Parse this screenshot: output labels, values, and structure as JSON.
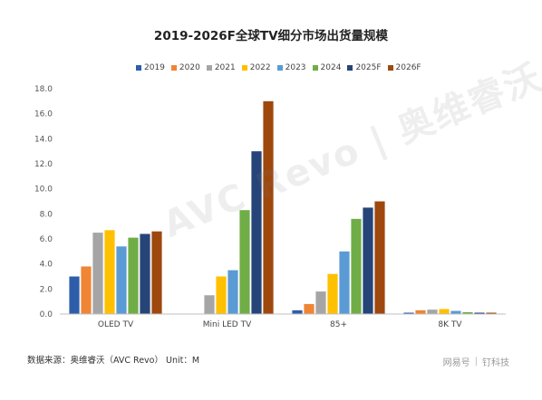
{
  "chart_data": {
    "type": "bar",
    "title": "2019-2026F全球TV细分市场出货量规模",
    "categories": [
      "OLED TV",
      "Mini LED TV",
      "85+",
      "8K TV"
    ],
    "ylim": [
      0,
      18
    ],
    "yticks": [
      "0.0",
      "2.0",
      "4.0",
      "6.0",
      "8.0",
      "10.0",
      "12.0",
      "14.0",
      "16.0",
      "18.0"
    ],
    "legend_position": "top",
    "grid": false,
    "series": [
      {
        "name": "2019",
        "color": "#2e5eaa",
        "values": [
          3.0,
          0,
          0.3,
          0.1
        ]
      },
      {
        "name": "2020",
        "color": "#ef8535",
        "values": [
          3.8,
          0,
          0.8,
          0.3
        ]
      },
      {
        "name": "2021",
        "color": "#a5a5a5",
        "values": [
          6.5,
          1.5,
          1.8,
          0.35
        ]
      },
      {
        "name": "2022",
        "color": "#ffc000",
        "values": [
          6.7,
          3.0,
          3.2,
          0.4
        ]
      },
      {
        "name": "2023",
        "color": "#5b9bd5",
        "values": [
          5.4,
          3.5,
          5.0,
          0.25
        ]
      },
      {
        "name": "2024",
        "color": "#70ad47",
        "values": [
          6.1,
          8.3,
          7.6,
          0.15
        ]
      },
      {
        "name": "2025F",
        "color": "#264478",
        "values": [
          6.4,
          13.0,
          8.5,
          0.1
        ]
      },
      {
        "name": "2026F",
        "color": "#9e480e",
        "values": [
          6.6,
          17.0,
          9.0,
          0.1
        ]
      }
    ]
  },
  "source_text": "数据来源：奥维睿沃（AVC Revo）  Unit：M",
  "watermark": "AVC Revo | 奥维睿沃",
  "corner": {
    "left": "网易号",
    "right": "钉科技"
  }
}
